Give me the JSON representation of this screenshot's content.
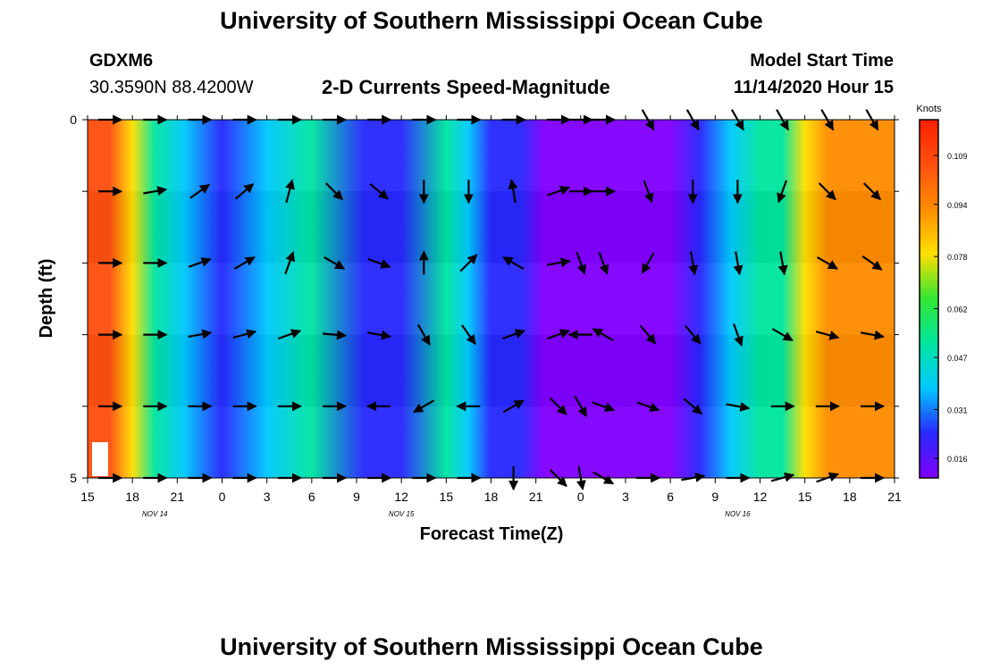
{
  "page": {
    "title_top": "University of Southern Mississippi Ocean Cube",
    "title_bottom": "University of Southern Mississippi Ocean Cube",
    "station_id": "GDXM6",
    "station_coords": "30.3590N 88.4200W",
    "plot_title": "2-D Currents Speed-Magnitude",
    "model_start_label": "Model Start Time",
    "model_start_value": "11/14/2020 Hour 15"
  },
  "chart_data": {
    "type": "heatmap",
    "title": "2-D Currents Speed-Magnitude",
    "xlabel": "Forecast Time(Z)",
    "ylabel": "Depth (ft)",
    "x_tick_labels": [
      "15",
      "18",
      "21",
      "0",
      "3",
      "6",
      "9",
      "12",
      "15",
      "18",
      "21",
      "0",
      "3",
      "6",
      "9",
      "12",
      "15",
      "18",
      "21"
    ],
    "x_range_hours": [
      0,
      54
    ],
    "date_labels": [
      {
        "label": "NOV 14",
        "hour": 4.5
      },
      {
        "label": "NOV 15",
        "hour": 21
      },
      {
        "label": "NOV 16",
        "hour": 43.5
      }
    ],
    "y_tick_labels": [
      "0",
      "5"
    ],
    "ylim": [
      0,
      5
    ],
    "colorbar": {
      "title": "Knots",
      "tick_labels": [
        "0.109",
        "0.094",
        "0.078",
        "0.062",
        "0.047",
        "0.031",
        "0.016"
      ],
      "tick_values": [
        0.109,
        0.094,
        0.078,
        0.062,
        0.047,
        0.031,
        0.016
      ],
      "range": [
        0.01,
        0.12
      ],
      "colors": [
        "#8000ff",
        "#2828ff",
        "#00c8ff",
        "#00e6a0",
        "#32e632",
        "#ffe000",
        "#ff8c00",
        "#ff5010",
        "#ff1e00"
      ]
    },
    "speed_profile": {
      "hours": [
        0,
        1.5,
        3,
        4.5,
        6.5,
        9,
        12,
        15,
        18.5,
        21,
        24,
        25.5,
        27,
        29,
        30.5,
        32,
        33.5,
        36,
        39,
        41,
        43,
        45,
        46.5,
        48,
        49.5,
        51,
        54
      ],
      "speeds": [
        0.11,
        0.104,
        0.082,
        0.058,
        0.034,
        0.022,
        0.04,
        0.058,
        0.022,
        0.028,
        0.055,
        0.04,
        0.028,
        0.018,
        0.014,
        0.012,
        0.012,
        0.012,
        0.016,
        0.028,
        0.036,
        0.048,
        0.058,
        0.085,
        0.09,
        0.088,
        0.088
      ]
    },
    "arrow_hours": [
      1.5,
      4.5,
      7.5,
      10.5,
      13.5,
      16.5,
      19.5,
      22.5,
      25.5,
      28.5,
      31.5,
      33,
      34.5,
      37.5,
      40.5,
      43.5,
      46.5,
      49.5,
      52.5
    ],
    "arrow_depths": [
      0,
      1,
      2,
      3,
      4,
      5
    ],
    "arrow_directions_deg_by_depth": [
      [
        0,
        0,
        0,
        0,
        0,
        0,
        0,
        0,
        0,
        0,
        0,
        0,
        0,
        60,
        60,
        60,
        60,
        60,
        60
      ],
      [
        0,
        -10,
        -35,
        -40,
        -75,
        45,
        40,
        90,
        90,
        -100,
        -20,
        0,
        0,
        70,
        90,
        90,
        110,
        45,
        45
      ],
      [
        0,
        0,
        -20,
        -30,
        -70,
        30,
        20,
        -90,
        -45,
        -150,
        -10,
        70,
        70,
        120,
        80,
        80,
        80,
        30,
        35
      ],
      [
        0,
        0,
        -10,
        -15,
        -20,
        5,
        10,
        60,
        55,
        -20,
        -20,
        180,
        210,
        50,
        50,
        70,
        30,
        15,
        10
      ],
      [
        0,
        0,
        0,
        0,
        0,
        0,
        180,
        150,
        180,
        -30,
        45,
        60,
        20,
        20,
        40,
        10,
        0,
        0,
        0
      ],
      [
        0,
        0,
        0,
        0,
        0,
        0,
        0,
        0,
        0,
        90,
        45,
        80,
        30,
        0,
        -10,
        0,
        -15,
        -20,
        0
      ]
    ]
  }
}
